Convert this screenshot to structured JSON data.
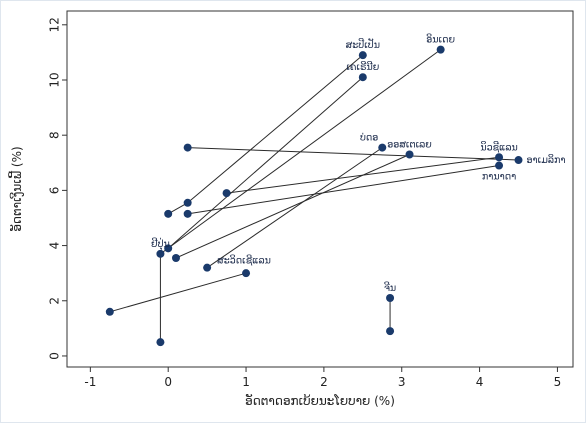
{
  "chart_data": {
    "type": "scatter",
    "xlabel": "ອັດຕາດອກເບ້ຍນະໂຍບາຍ (%)",
    "ylabel": "ອັດຕາເງິນເຟີ້ (%)",
    "xlim": [
      -1.3,
      5.2
    ],
    "ylim": [
      -0.4,
      12.5
    ],
    "xticks": [
      -1,
      0,
      1,
      2,
      3,
      4,
      5
    ],
    "yticks": [
      0,
      2,
      4,
      6,
      8,
      10,
      12
    ],
    "grid": false,
    "marker_color": "#1a3a6b",
    "line_color": "#2b2b2b",
    "segments": [
      {
        "x1": 3.5,
        "y1": 11.1,
        "x2": -0.1,
        "y2": 3.7
      },
      {
        "x1": 2.5,
        "y1": 10.9,
        "x2": 0.25,
        "y2": 5.55
      },
      {
        "x1": 2.5,
        "y1": 10.1,
        "x2": 0.0,
        "y2": 3.9
      },
      {
        "x1": 0.25,
        "y1": 7.55,
        "x2": 4.5,
        "y2": 7.1
      },
      {
        "x1": 2.75,
        "y1": 7.55,
        "x2": 0.5,
        "y2": 3.2
      },
      {
        "x1": 3.1,
        "y1": 7.3,
        "x2": 0.1,
        "y2": 3.55
      },
      {
        "x1": 4.25,
        "y1": 7.2,
        "x2": 0.75,
        "y2": 5.9
      },
      {
        "x1": 4.25,
        "y1": 6.9,
        "x2": 0.25,
        "y2": 5.15
      },
      {
        "x1": 1.0,
        "y1": 3.0,
        "x2": -0.75,
        "y2": 1.6
      },
      {
        "x1": -0.1,
        "y1": 3.7,
        "x2": -0.1,
        "y2": 0.5
      },
      {
        "x1": 2.85,
        "y1": 2.1,
        "x2": 2.85,
        "y2": 0.9
      },
      {
        "x1": 0.25,
        "y1": 5.55,
        "x2": 0.0,
        "y2": 5.15
      }
    ],
    "points": [
      {
        "x": 3.5,
        "y": 11.1,
        "label": "ອິນເດຍ"
      },
      {
        "x": 2.5,
        "y": 10.9,
        "label": "ສະປີເປັນ"
      },
      {
        "x": 2.5,
        "y": 10.1,
        "label": "ເຄເຣີນີຍ"
      },
      {
        "x": 2.75,
        "y": 7.55,
        "label": "ບ່ດອ"
      },
      {
        "x": 3.1,
        "y": 7.3,
        "label": "ອອສເຕເລຍ"
      },
      {
        "x": 4.25,
        "y": 7.2,
        "label": "ນິວຊີແລນ"
      },
      {
        "x": 4.5,
        "y": 7.1,
        "label": "ອາເມລິກາ"
      },
      {
        "x": 4.25,
        "y": 6.9,
        "label": "ການາດາ"
      },
      {
        "x": 0.25,
        "y": 7.55,
        "label": ""
      },
      {
        "x": 0.75,
        "y": 5.9,
        "label": ""
      },
      {
        "x": 0.25,
        "y": 5.55,
        "label": ""
      },
      {
        "x": 0.25,
        "y": 5.15,
        "label": ""
      },
      {
        "x": 0.0,
        "y": 5.15,
        "label": ""
      },
      {
        "x": 0.0,
        "y": 3.9,
        "label": ""
      },
      {
        "x": -0.1,
        "y": 3.7,
        "label": "ຢີປຸ່ນ"
      },
      {
        "x": 0.1,
        "y": 3.55,
        "label": ""
      },
      {
        "x": 0.5,
        "y": 3.2,
        "label": "ສະວິດເຊີແລນ"
      },
      {
        "x": 1.0,
        "y": 3.0,
        "label": ""
      },
      {
        "x": -0.75,
        "y": 1.6,
        "label": ""
      },
      {
        "x": -0.1,
        "y": 0.5,
        "label": ""
      },
      {
        "x": 2.85,
        "y": 2.1,
        "label": "ຈີນ"
      },
      {
        "x": 2.85,
        "y": 0.9,
        "label": ""
      }
    ]
  }
}
